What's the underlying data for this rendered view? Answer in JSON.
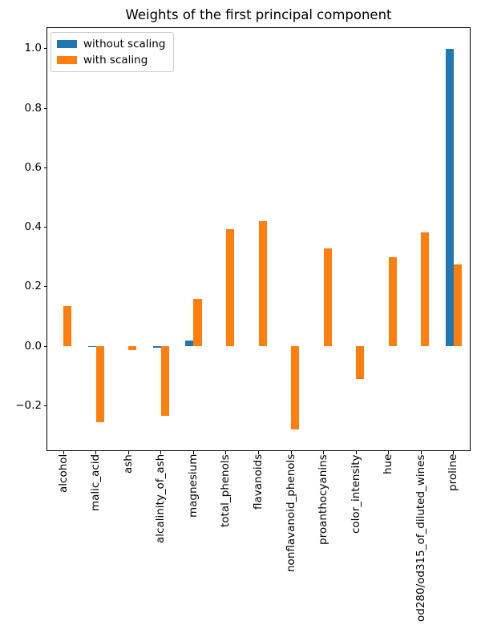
{
  "chart_data": {
    "type": "bar",
    "title": "Weights of the first principal component",
    "categories": [
      "alcohol",
      "malic_acid",
      "ash",
      "alcalinity_of_ash",
      "magnesium",
      "total_phenols",
      "flavanoids",
      "nonflavanoid_phenols",
      "proanthocyanins",
      "color_intensity",
      "hue",
      "od280/od315_of_diluted_wines",
      "proline"
    ],
    "series": [
      {
        "name": "without scaling",
        "color": "#1f77b4",
        "values": [
          0.0,
          -0.002,
          0.0,
          -0.004,
          0.018,
          0.0,
          0.0,
          0.0,
          0.0,
          0.0,
          0.0,
          0.0,
          1.0
        ]
      },
      {
        "name": "with scaling",
        "color": "#ff7f0e",
        "values": [
          0.135,
          -0.255,
          -0.012,
          -0.235,
          0.16,
          0.395,
          0.42,
          -0.28,
          0.33,
          -0.11,
          0.3,
          0.383,
          0.275
        ]
      }
    ],
    "xlabel": "",
    "ylabel": "",
    "ylim": [
      -0.35,
      1.07
    ],
    "yticks": [
      1.0,
      0.8,
      0.6,
      0.4,
      0.2,
      0.0,
      -0.2
    ],
    "grid": false,
    "legend_position": "upper left",
    "axis_color": "#000000",
    "background_color": "#ffffff"
  }
}
